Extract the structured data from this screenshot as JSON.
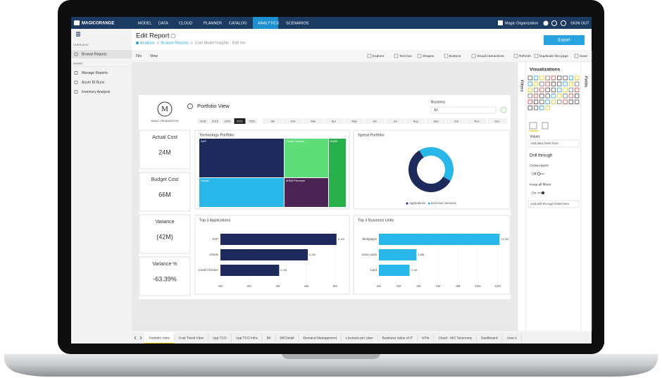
{
  "nav": {
    "brand": "MAGICORANGE",
    "items": [
      "MODEL",
      "DATA",
      "CLOUD",
      "PLANNER",
      "CATALOG",
      "ANALYTICS",
      "SCENARIOS"
    ],
    "active": "ANALYTICS",
    "org": "Magic Organization",
    "sign_out": "SIGN OUT"
  },
  "sidebar": {
    "sections": [
      {
        "title": "OVERVIEW",
        "items": [
          "Browse Reports"
        ]
      },
      {
        "title": "ADMIN",
        "items": [
          "Manage Reports",
          "Azure BI Runs",
          "Inventory Analysis"
        ]
      }
    ],
    "active": "Browse Reports"
  },
  "header": {
    "title": "Edit Report",
    "breadcrumb": [
      "Analysis",
      "Browse Reports",
      "Cost Model Insights - Edit me"
    ],
    "export": "Export"
  },
  "toolbar": {
    "left": [
      "File",
      "View"
    ],
    "right": [
      "Explore",
      "Text box",
      "Shapes",
      "Buttons",
      "Visual interactions",
      "Refresh",
      "Duplicate this page",
      "Save"
    ]
  },
  "report": {
    "logo_letter": "M",
    "logo": "MAGIC ORGANIZATION",
    "title": "Portfolio View",
    "years": [
      "2018",
      "2019",
      "2020",
      "2021",
      "2022"
    ],
    "selected_year": "2021",
    "months": [
      "Jan",
      "Feb",
      "Mar",
      "Apr",
      "May",
      "Jun",
      "Jul",
      "Aug",
      "Sep",
      "Oct",
      "Nov",
      "Dec"
    ],
    "filter_label": "Business",
    "filter_value": "All",
    "kpis": [
      {
        "label": "Actual Cost",
        "value": "24M"
      },
      {
        "label": "Budget Cost",
        "value": "66M"
      },
      {
        "label": "Variance",
        "value": "(42M)"
      },
      {
        "label": "Variance %",
        "value": "-63.39%"
      }
    ],
    "treemap": {
      "title": "Technology Portfolio",
      "tiles": [
        "SAP",
        "Credit Checker",
        "M365",
        "Oracle",
        "M365 Premium"
      ],
      "colors": [
        "#1f2a5c",
        "#5fdd78",
        "#28b04a",
        "#29b6e8",
        "#4b2453"
      ]
    }
  },
  "chart_data": [
    {
      "type": "pie",
      "title": "Spend Portfolio",
      "categories": [
        "Applications",
        "End User Services"
      ],
      "values": [
        58,
        42
      ],
      "colors": [
        "#1f2a5c",
        "#29b6e8"
      ]
    },
    {
      "type": "bar",
      "orientation": "horizontal",
      "title": "Top 3 Applications",
      "categories": [
        "SAP",
        "Oracle",
        "Credit Checker"
      ],
      "values": [
        8.1,
        6.1,
        4.1
      ],
      "value_labels": [
        "8.1M",
        "6.1M",
        "4.1M"
      ],
      "color": "#1f2a5c",
      "xlim": [
        0,
        8.7
      ],
      "xticks": [
        {
          "value": 0,
          "label": "0M"
        },
        {
          "value": 2,
          "label": "2M"
        },
        {
          "value": 4,
          "label": "4M"
        },
        {
          "value": 6,
          "label": "6M"
        },
        {
          "value": 8,
          "label": "8M"
        }
      ]
    },
    {
      "type": "bar",
      "orientation": "horizontal",
      "title": "Top 3 Business Units",
      "categories": [
        "Mortgages",
        "Auto Loans",
        "Card"
      ],
      "values": [
        12.2,
        3.8,
        3.1
      ],
      "value_labels": [
        "12.2M",
        "3.8M",
        "3.1M"
      ],
      "color": "#29b6e8",
      "xlim": [
        0,
        12.6
      ],
      "xticks": [
        {
          "value": 0,
          "label": "0M"
        },
        {
          "value": 2,
          "label": "2M"
        },
        {
          "value": 4,
          "label": "4M"
        },
        {
          "value": 6,
          "label": "6M"
        },
        {
          "value": 8,
          "label": "8M"
        },
        {
          "value": 10,
          "label": "10M"
        },
        {
          "value": 12,
          "label": "12M"
        }
      ]
    }
  ],
  "tabs": {
    "items": [
      "Portfolio View",
      "Cost Trend View",
      "App TCO",
      "App TCO Infra",
      "BII",
      "Bill Detail",
      "Demand Management",
      "Licenses per User",
      "Business Value of IT",
      "KPIs",
      "Cloud - MO Taxonomy",
      "Dashboard",
      "Area A"
    ],
    "active": "Portfolio View"
  },
  "panes": {
    "filters": "Filters",
    "fields": "Fields",
    "visualizations": "Visualizations",
    "values_label": "Values",
    "values_placeholder": "Add data fields here",
    "drill_title": "Drill through",
    "cross_report": "Cross-report",
    "cross_report_state": "Off",
    "keep_filters": "Keep all filters",
    "keep_filters_state": "On",
    "drill_placeholder": "Add drill-through fields here"
  }
}
